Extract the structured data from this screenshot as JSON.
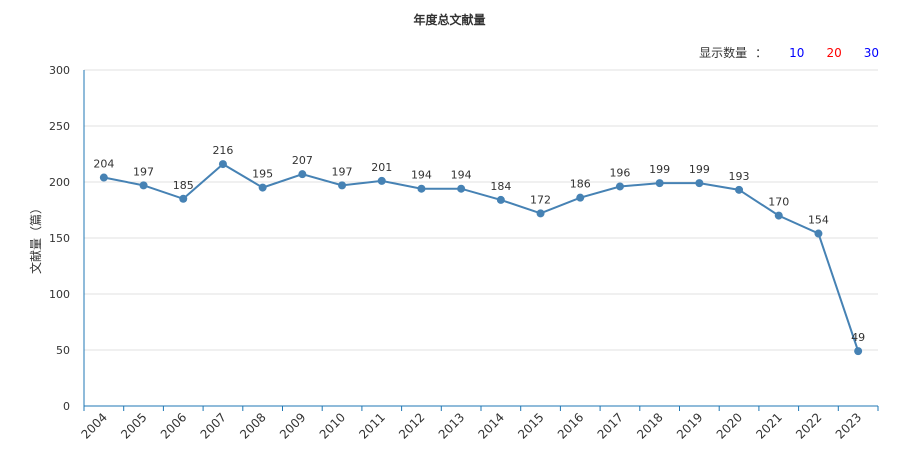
{
  "controls": {
    "show_count_label": "显示数量",
    "separator": "：",
    "options": [
      {
        "label": "10",
        "color": "#0000ff"
      },
      {
        "label": "20",
        "color": "#ff0000"
      },
      {
        "label": "30",
        "color": "#0000ff"
      }
    ]
  },
  "colors": {
    "line": "#4682b4",
    "axis": "#1f77b4",
    "grid": "#e0e0e0"
  },
  "chart_data": {
    "type": "line",
    "title": "年度总文献量",
    "xlabel": "",
    "ylabel": "文献量（篇）",
    "ylim": [
      0,
      300
    ],
    "yticks": [
      0,
      50,
      100,
      150,
      200,
      250,
      300
    ],
    "grid": true,
    "categories": [
      "2004",
      "2005",
      "2006",
      "2007",
      "2008",
      "2009",
      "2010",
      "2011",
      "2012",
      "2013",
      "2014",
      "2015",
      "2016",
      "2017",
      "2018",
      "2019",
      "2020",
      "2021",
      "2022",
      "2023"
    ],
    "series": [
      {
        "values": [
          204,
          197,
          185,
          216,
          195,
          207,
          197,
          201,
          194,
          194,
          184,
          172,
          186,
          196,
          199,
          199,
          193,
          170,
          154,
          49
        ]
      }
    ]
  }
}
